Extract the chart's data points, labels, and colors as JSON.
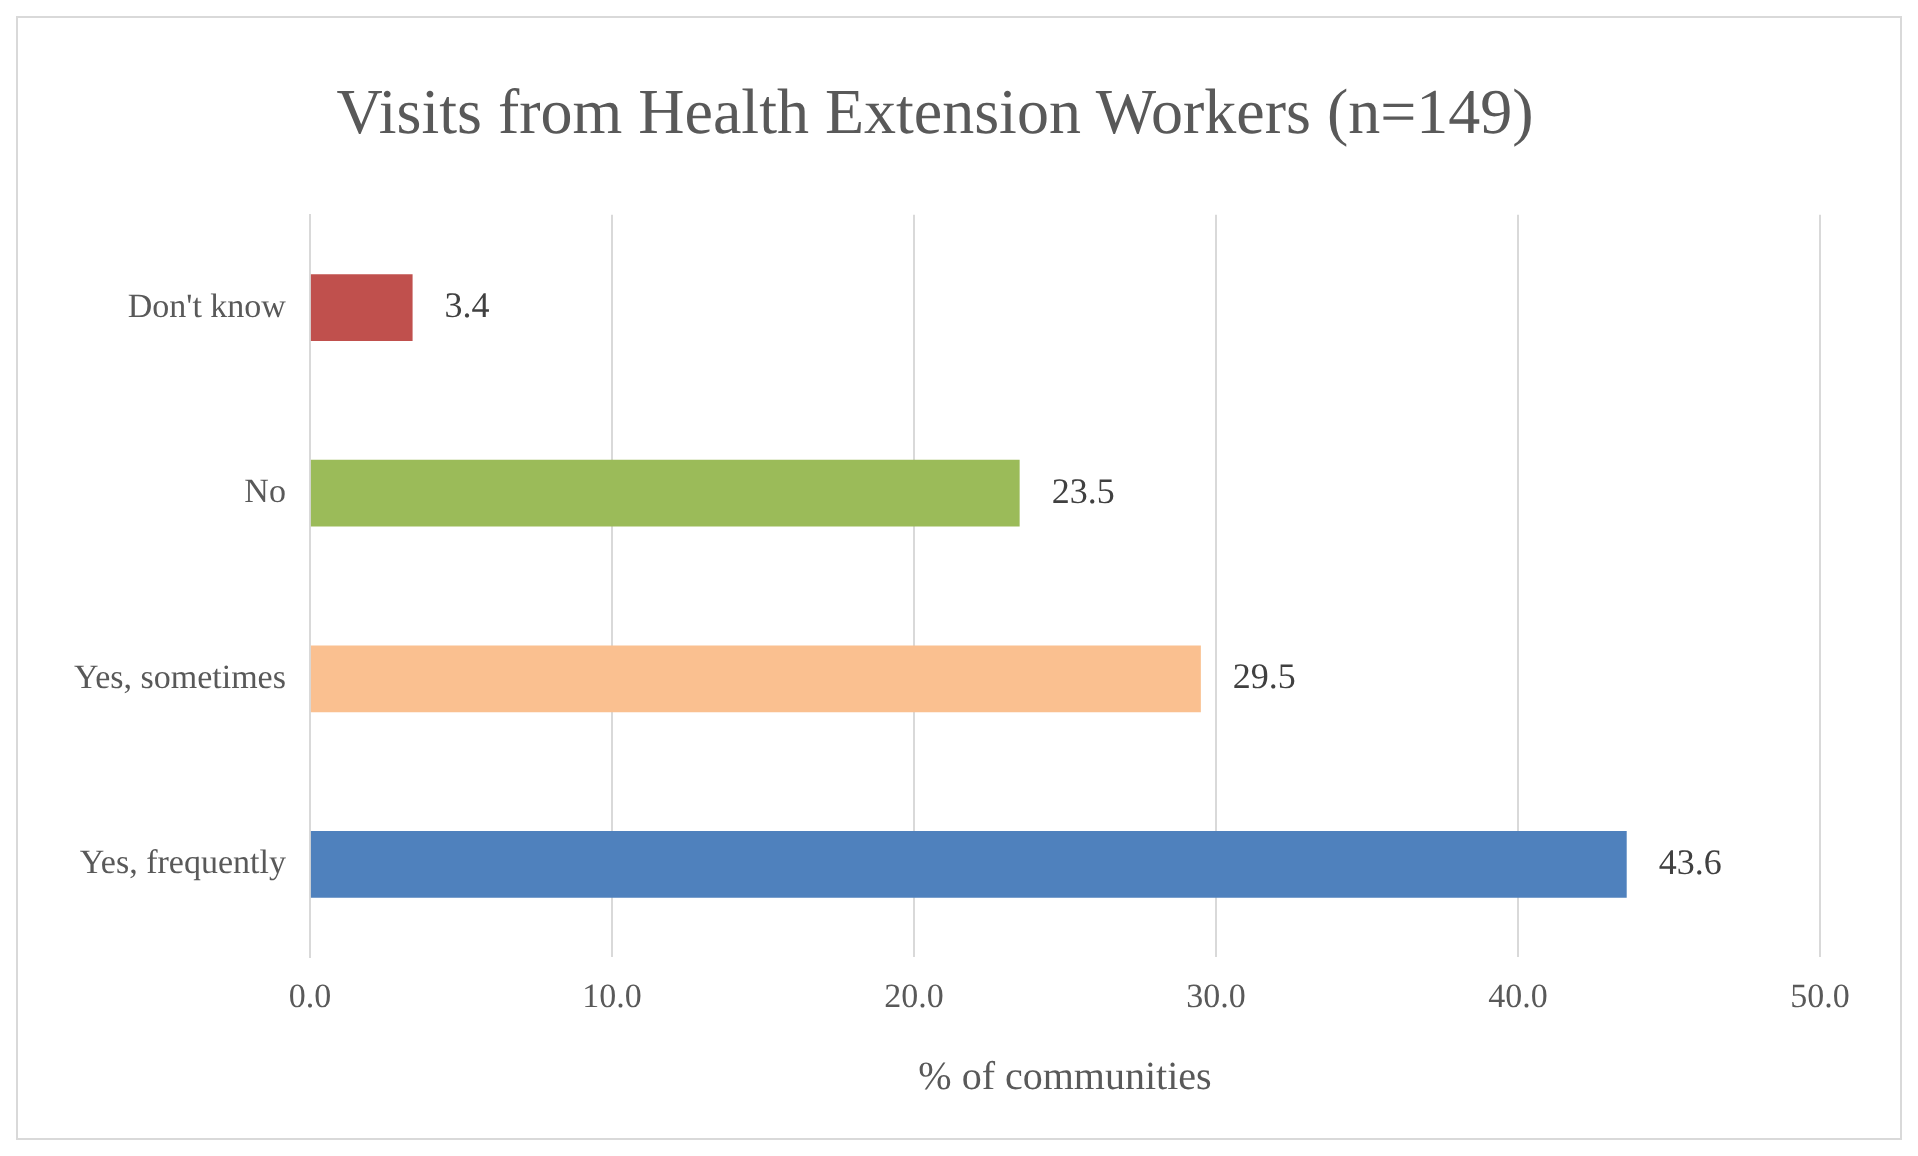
{
  "chart_data": {
    "type": "bar",
    "orientation": "horizontal",
    "title": "Visits from Health Extension Workers (n=149)",
    "xlabel": "% of communities",
    "categories": [
      "Don't know",
      "No",
      "Yes, sometimes",
      "Yes, frequently"
    ],
    "values": [
      3.4,
      23.5,
      29.5,
      43.6
    ],
    "colors": [
      "#c0504d",
      "#9bbb59",
      "#fac090",
      "#4f81bd"
    ],
    "xlim": [
      0,
      50
    ],
    "xticks": [
      {
        "value": 0,
        "label": "0.0"
      },
      {
        "value": 10,
        "label": "10.0"
      },
      {
        "value": 20,
        "label": "20.0"
      },
      {
        "value": 30,
        "label": "30.0"
      },
      {
        "value": 40,
        "label": "40.0"
      },
      {
        "value": 50,
        "label": "50.0"
      }
    ],
    "grid": "x",
    "data_labels": true,
    "legend": false
  }
}
